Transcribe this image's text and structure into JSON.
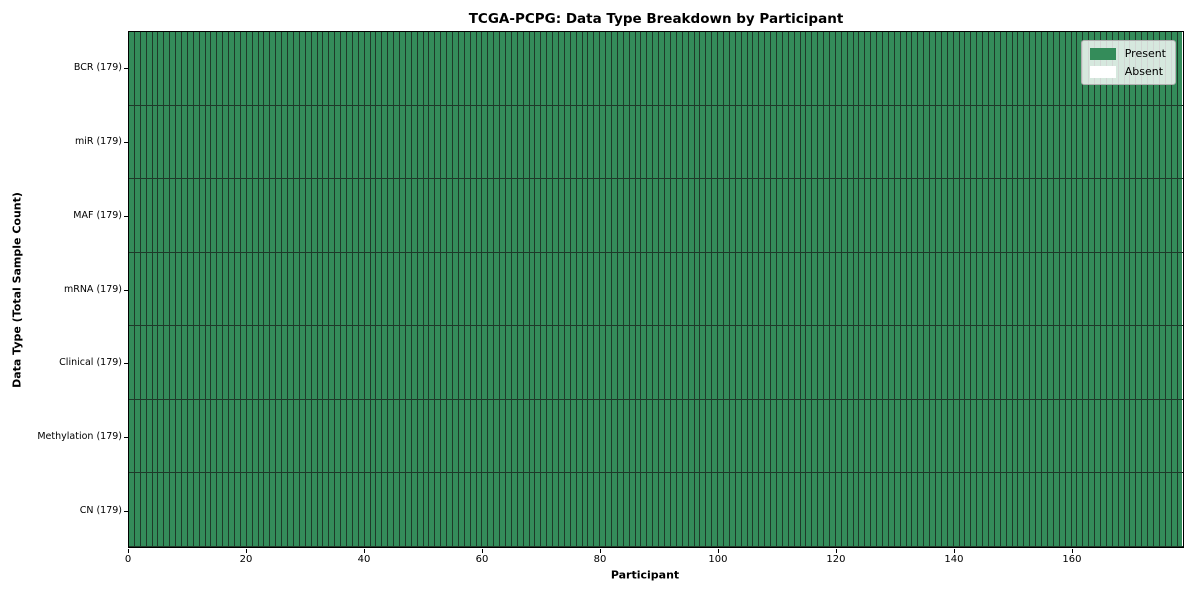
{
  "chart_data": {
    "type": "heatmap",
    "title": "TCGA-PCPG: Data Type Breakdown by Participant",
    "xlabel": "Participant",
    "ylabel": "Data Type (Total Sample Count)",
    "n_participants": 179,
    "x_range": [
      0,
      179
    ],
    "x_ticks": [
      "0",
      "20",
      "40",
      "60",
      "80",
      "100",
      "120",
      "140",
      "160"
    ],
    "x_tick_values": [
      0,
      20,
      40,
      60,
      80,
      100,
      120,
      140,
      160
    ],
    "rows": [
      {
        "label": "BCR (179)",
        "data_type": "BCR",
        "total_samples": 179,
        "present": 179,
        "absent": 0
      },
      {
        "label": "miR (179)",
        "data_type": "miR",
        "total_samples": 179,
        "present": 179,
        "absent": 0
      },
      {
        "label": "MAF (179)",
        "data_type": "MAF",
        "total_samples": 179,
        "present": 179,
        "absent": 0
      },
      {
        "label": "mRNA (179)",
        "data_type": "mRNA",
        "total_samples": 179,
        "present": 179,
        "absent": 0
      },
      {
        "label": "Clinical (179)",
        "data_type": "Clinical",
        "total_samples": 179,
        "present": 179,
        "absent": 0
      },
      {
        "label": "Methylation (179)",
        "data_type": "Methylation",
        "total_samples": 179,
        "present": 179,
        "absent": 0
      },
      {
        "label": "CN (179)",
        "data_type": "CN",
        "total_samples": 179,
        "present": 179,
        "absent": 0
      }
    ],
    "legend": [
      {
        "label": "Present",
        "color": "#348c5a"
      },
      {
        "label": "Absent",
        "color": "#ffffff"
      }
    ],
    "legend_position": "upper right",
    "grid": false,
    "colors": {
      "present_fill": "#348c5a",
      "absent_fill": "#ffffff",
      "cell_line": "#1e3a29",
      "spine": "#000000",
      "legend_border": "#b0b0b0"
    }
  }
}
